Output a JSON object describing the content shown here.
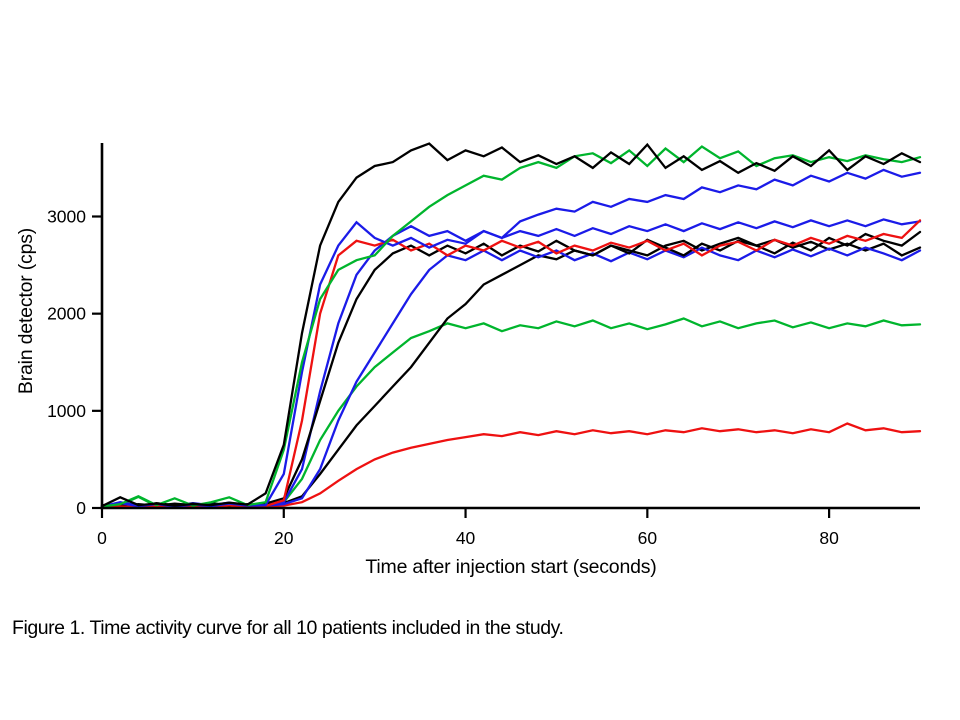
{
  "figure": {
    "caption": "Figure 1. Time activity curve for all 10 patients included in the study."
  },
  "chart_data": {
    "type": "line",
    "title": "",
    "xlabel": "Time after injection start (seconds)",
    "ylabel": "Brain detector (cps)",
    "xlim": [
      0,
      90
    ],
    "ylim": [
      0,
      3760
    ],
    "xticks": [
      0,
      20,
      40,
      60,
      80
    ],
    "yticks": [
      0,
      1000,
      2000,
      3000
    ],
    "grid": false,
    "legend": false,
    "axis_color": "#000000",
    "background": "#ffffff",
    "x": [
      0,
      2,
      4,
      6,
      8,
      10,
      12,
      14,
      16,
      18,
      20,
      22,
      24,
      26,
      28,
      30,
      32,
      34,
      36,
      38,
      40,
      42,
      44,
      46,
      48,
      50,
      52,
      54,
      56,
      58,
      60,
      62,
      64,
      66,
      68,
      70,
      72,
      74,
      76,
      78,
      80,
      82,
      84,
      86,
      88,
      90
    ],
    "series": [
      {
        "name": "black-1",
        "color": "#000000",
        "y": [
          20,
          110,
          30,
          45,
          25,
          40,
          30,
          55,
          35,
          150,
          650,
          1800,
          2700,
          3150,
          3400,
          3520,
          3560,
          3680,
          3750,
          3580,
          3680,
          3620,
          3710,
          3560,
          3630,
          3540,
          3620,
          3500,
          3660,
          3540,
          3740,
          3500,
          3620,
          3480,
          3570,
          3450,
          3550,
          3470,
          3620,
          3520,
          3680,
          3480,
          3620,
          3540,
          3650,
          3560
        ]
      },
      {
        "name": "green-1",
        "color": "#00b52d",
        "y": [
          15,
          40,
          120,
          30,
          100,
          25,
          60,
          110,
          30,
          60,
          600,
          1500,
          2150,
          2450,
          2550,
          2600,
          2800,
          2950,
          3100,
          3220,
          3320,
          3420,
          3380,
          3500,
          3560,
          3500,
          3620,
          3650,
          3550,
          3680,
          3520,
          3700,
          3560,
          3720,
          3600,
          3670,
          3520,
          3600,
          3630,
          3560,
          3610,
          3570,
          3630,
          3590,
          3560,
          3610
        ]
      },
      {
        "name": "blue-1",
        "color": "#1b1be8",
        "y": [
          10,
          50,
          20,
          40,
          15,
          35,
          20,
          45,
          25,
          30,
          350,
          1400,
          2300,
          2700,
          2940,
          2780,
          2700,
          2780,
          2680,
          2760,
          2720,
          2850,
          2780,
          2950,
          3020,
          3080,
          3050,
          3150,
          3100,
          3180,
          3150,
          3220,
          3180,
          3300,
          3250,
          3320,
          3280,
          3380,
          3320,
          3420,
          3360,
          3450,
          3390,
          3480,
          3410,
          3450
        ]
      },
      {
        "name": "red-1",
        "color": "#ee1111",
        "y": [
          5,
          15,
          10,
          20,
          10,
          25,
          15,
          30,
          10,
          20,
          80,
          900,
          2000,
          2600,
          2750,
          2700,
          2760,
          2650,
          2720,
          2600,
          2700,
          2650,
          2750,
          2680,
          2740,
          2620,
          2700,
          2650,
          2730,
          2680,
          2750,
          2650,
          2720,
          2600,
          2700,
          2740,
          2650,
          2760,
          2700,
          2780,
          2720,
          2800,
          2750,
          2820,
          2780,
          2960
        ]
      },
      {
        "name": "black-2",
        "color": "#000000",
        "y": [
          25,
          35,
          20,
          50,
          30,
          45,
          25,
          40,
          30,
          45,
          100,
          500,
          1100,
          1700,
          2150,
          2450,
          2620,
          2700,
          2600,
          2700,
          2620,
          2720,
          2600,
          2700,
          2640,
          2750,
          2650,
          2600,
          2700,
          2620,
          2760,
          2680,
          2600,
          2720,
          2650,
          2750,
          2700,
          2620,
          2730,
          2650,
          2780,
          2700,
          2820,
          2750,
          2700,
          2840
        ]
      },
      {
        "name": "blue-2",
        "color": "#1b1be8",
        "y": [
          15,
          60,
          25,
          45,
          20,
          50,
          30,
          55,
          20,
          35,
          60,
          400,
          1200,
          1900,
          2400,
          2650,
          2800,
          2900,
          2800,
          2850,
          2750,
          2850,
          2780,
          2850,
          2800,
          2870,
          2800,
          2880,
          2820,
          2900,
          2850,
          2920,
          2850,
          2930,
          2870,
          2940,
          2880,
          2950,
          2890,
          2960,
          2900,
          2960,
          2900,
          2970,
          2920,
          2950
        ]
      },
      {
        "name": "blue-3",
        "color": "#1b1be8",
        "y": [
          20,
          45,
          15,
          35,
          20,
          40,
          25,
          35,
          15,
          25,
          40,
          100,
          400,
          900,
          1300,
          1600,
          1900,
          2200,
          2450,
          2600,
          2550,
          2650,
          2550,
          2650,
          2580,
          2650,
          2550,
          2620,
          2540,
          2630,
          2560,
          2650,
          2580,
          2680,
          2600,
          2550,
          2650,
          2580,
          2660,
          2590,
          2670,
          2600,
          2680,
          2620,
          2550,
          2650
        ]
      },
      {
        "name": "black-3",
        "color": "#000000",
        "y": [
          30,
          20,
          40,
          25,
          45,
          30,
          50,
          25,
          40,
          30,
          50,
          120,
          350,
          600,
          850,
          1050,
          1250,
          1450,
          1700,
          1950,
          2100,
          2300,
          2400,
          2500,
          2600,
          2560,
          2650,
          2600,
          2700,
          2650,
          2600,
          2700,
          2750,
          2650,
          2720,
          2780,
          2700,
          2760,
          2680,
          2740,
          2660,
          2720,
          2650,
          2720,
          2600,
          2680
        ]
      },
      {
        "name": "green-2",
        "color": "#00b52d",
        "y": [
          10,
          30,
          115,
          20,
          35,
          20,
          55,
          25,
          35,
          20,
          60,
          300,
          700,
          1000,
          1250,
          1450,
          1600,
          1750,
          1820,
          1900,
          1850,
          1900,
          1820,
          1880,
          1850,
          1920,
          1870,
          1930,
          1850,
          1900,
          1840,
          1890,
          1950,
          1870,
          1920,
          1850,
          1900,
          1930,
          1860,
          1910,
          1850,
          1900,
          1870,
          1930,
          1880,
          1890
        ]
      },
      {
        "name": "red-2",
        "color": "#ee1111",
        "y": [
          5,
          10,
          8,
          15,
          10,
          20,
          12,
          18,
          8,
          15,
          25,
          60,
          150,
          280,
          400,
          500,
          570,
          620,
          660,
          700,
          730,
          760,
          740,
          780,
          750,
          790,
          760,
          800,
          770,
          790,
          760,
          800,
          780,
          820,
          790,
          810,
          780,
          800,
          770,
          810,
          780,
          870,
          800,
          820,
          780,
          790
        ]
      }
    ]
  }
}
